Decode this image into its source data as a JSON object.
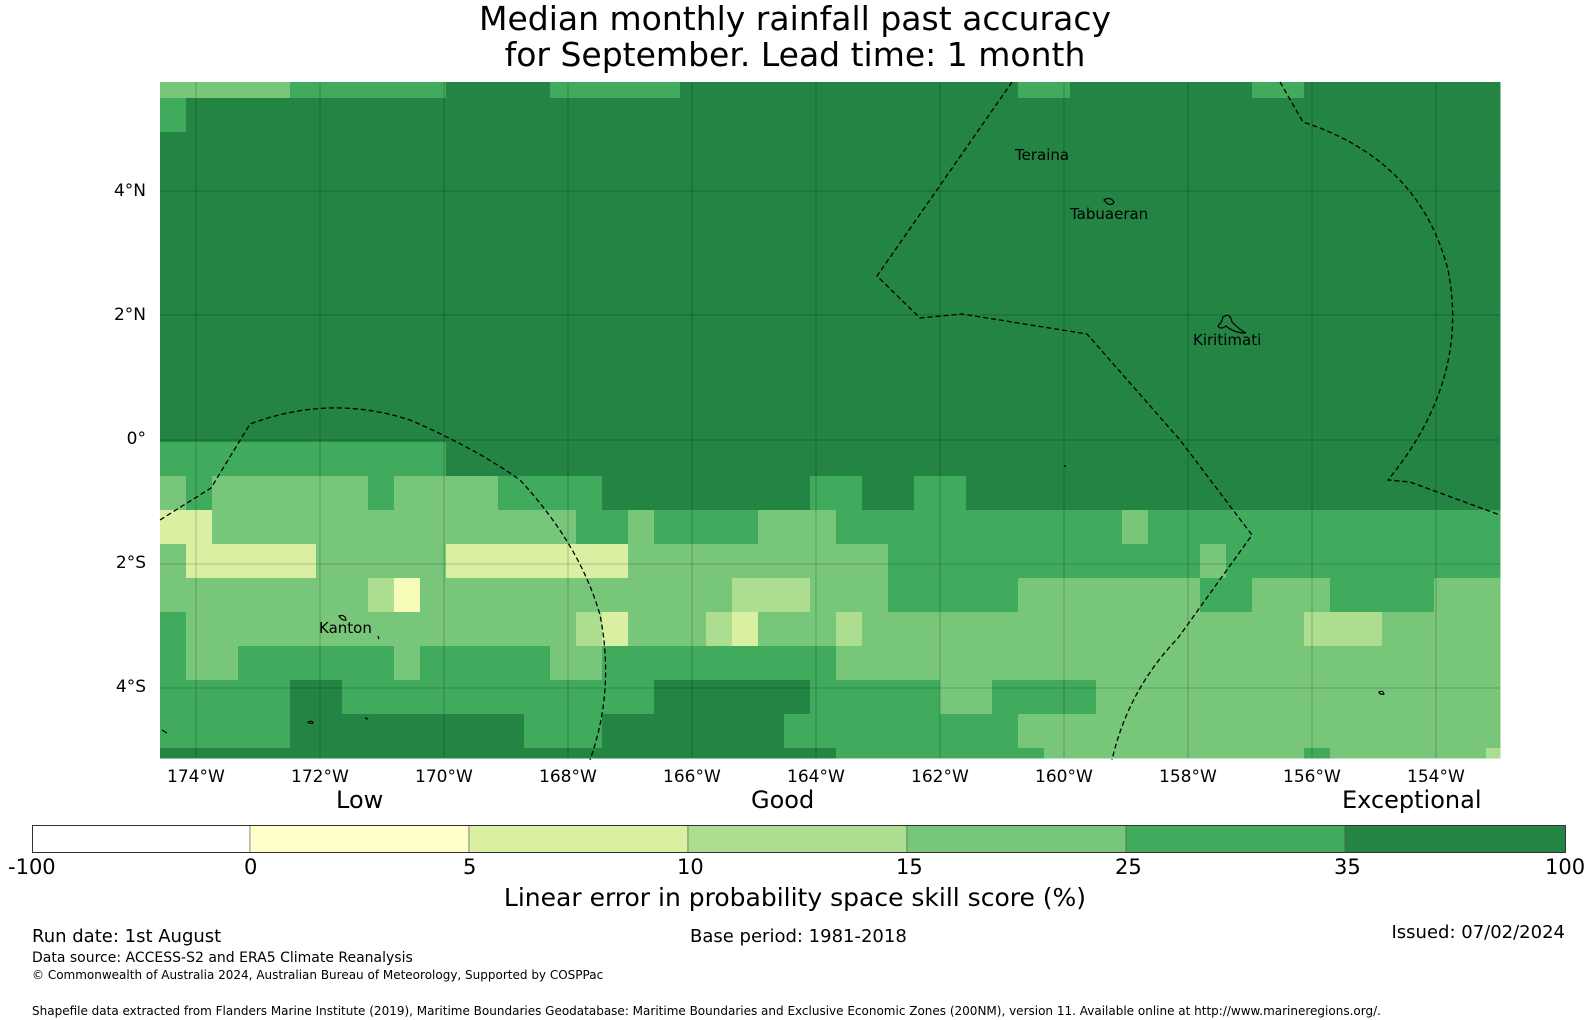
{
  "title": {
    "line1": "Median monthly rainfall past accuracy",
    "line2": "for September. Lead time: 1 month"
  },
  "map": {
    "lat_ticks": [
      "4°N",
      "2°N",
      "0°",
      "2°S",
      "4°S"
    ],
    "lon_ticks": [
      "174°W",
      "172°W",
      "170°W",
      "168°W",
      "166°W",
      "164°W",
      "162°W",
      "160°W",
      "158°W",
      "156°W",
      "154°W"
    ],
    "places": {
      "teraina": "Teraina",
      "tabuaeran": "Tabuaeran",
      "kiritimati": "Kiritimati",
      "kanton": "Kanton"
    },
    "grid_rows": [
      "5dddddeeeeeeeeeeddddeeeeeeeeeeeeeeeeeeeeeeedddeeeeeeeddeeeeeeeeeeeeeeeeeeeeeeeee",
      "dddddddddddddddddddddddddddddddddddddddddddddddddddddddddddddddddddddddddddddddddd",
      "ddddddeeeeeeeeeeeeeeeeeeeeeeeeeeeeeeeeeeeeeeeeeeeeeeeeeeeeeeeeeeeeeeeeeeeeeeeeee",
      "ddddddddddddddddeeeeeeeeeeeeeeeeeeeeeeeeeeeeeeeeeeeeeeeeeeeeeeeeeeeeeeeeeeeeeeeee"
    ],
    "cell_rows": [
      "ddddddeeeeeeeeeeeeeeeeeeeeeeeee",
      "ddddddeeeeeeeeeeeeeeeeeeeeeeeee",
      "ddddddeeeeeeeeeeeeeeeeeeeeeeeee",
      "ddddddeeeeeeeeeeeeeeeeeeeeeeeee"
    ]
  },
  "colorbar": {
    "words": [
      "Low",
      "Good",
      "Exceptional"
    ],
    "ticks": [
      "-100",
      "0",
      "5",
      "10",
      "15",
      "25",
      "35",
      "100"
    ],
    "colors": [
      "#ffffff",
      "#ffffcc",
      "#d9f0a3",
      "#addd8e",
      "#78c679",
      "#41ab5d",
      "#238443"
    ],
    "label": "Linear error in probability space skill score (%)"
  },
  "footer": {
    "run_date": "Run date: 1st August",
    "base_period": "Base period: 1981-2018",
    "issued": "Issued: 07/02/2024",
    "data_source": "Data source: ACCESS-S2 and ERA5 Climate Reanalysis",
    "copyright": "© Commonwealth of Australia 2024, Australian Bureau of Meteorology, Supported by COSPPac",
    "shapefile": "Shapefile data extracted from Flanders Marine Institute (2019), Maritime Boundaries Geodatabase: Maritime Boundaries and Exclusive Economic Zones (200NM), version 11. Available online at http://www.marineregions.org/."
  }
}
